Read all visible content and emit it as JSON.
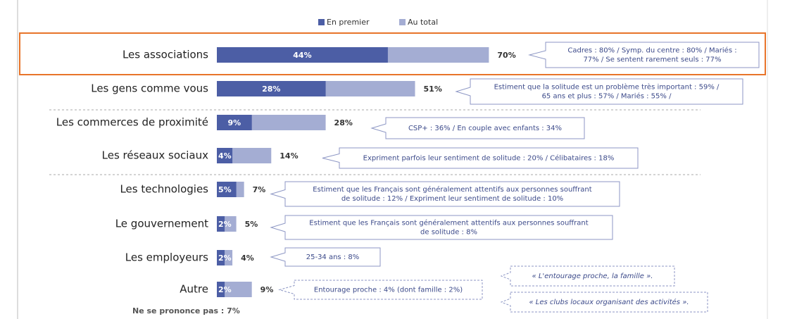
{
  "chart_data": {
    "type": "bar",
    "orientation": "horizontal",
    "legend": "top",
    "categories": [
      "Les associations",
      "Les gens comme vous",
      "Les commerces de proximité",
      "Les réseaux sociaux",
      "Les technologies",
      "Le gouvernement",
      "Les employeurs",
      "Autre"
    ],
    "series": [
      {
        "name": "En premier",
        "color": "#4c5ea5",
        "values": [
          44,
          28,
          9,
          4,
          5,
          2,
          2,
          2
        ],
        "value_labels": [
          "44%",
          "28%",
          "9%",
          "4%",
          "5%",
          "2%",
          "2%",
          "2%"
        ]
      },
      {
        "name": "Au total",
        "color": "#a4add3",
        "values": [
          70,
          51,
          28,
          14,
          7,
          5,
          4,
          9
        ],
        "value_labels": [
          "70%",
          "51%",
          "28%",
          "14%",
          "7%",
          "5%",
          "4%",
          "9%"
        ]
      }
    ],
    "annotations": [
      [
        "Cadres : 80% / Symp. du centre : 80% / Mariés :",
        "77% / Se sentent rarement seuls : 77%"
      ],
      [
        "Estiment que la solitude est un problème très important : 59% /",
        "65 ans et plus : 57% / Mariés : 55% /"
      ],
      [
        "CSP+ : 36% / En couple avec enfants : 34%"
      ],
      [
        "Expriment parfois leur sentiment de solitude : 20% / Célibataires : 18%"
      ],
      [
        "Estiment que les Français sont généralement attentifs aux personnes souffrant",
        "de solitude : 12% / Expriment leur sentiment de solitude : 10%"
      ],
      [
        "Estiment que les Français sont généralement attentifs aux personnes souffrant",
        "de solitude : 8%"
      ],
      [
        "25-34 ans : 8%"
      ],
      [
        "Entourage proche : 4% (dont famille : 2%)"
      ]
    ],
    "quotes": [
      "« L'entourage proche, la famille ».",
      "« Les clubs locaux organisant des activités »."
    ],
    "footnote": "Ne se prononce pas : 7%"
  }
}
